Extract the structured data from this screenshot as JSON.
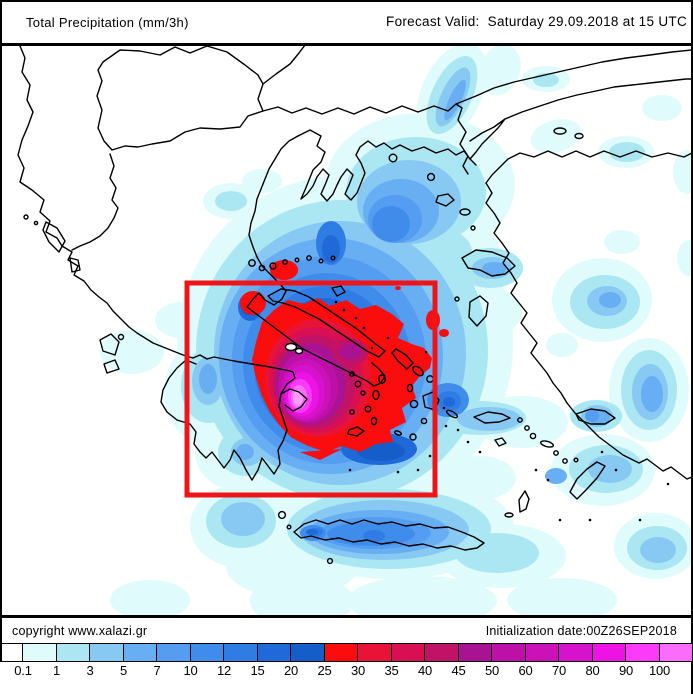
{
  "header": {
    "left_title": "Total Precipitation (mm/3h)",
    "right_title": "Forecast Valid:  Saturday 29.09.2018 at 15 UTC"
  },
  "footer": {
    "copyright": "copyright www.xalazi.gr",
    "initialization": "Initialization date:00Z26SEP2018"
  },
  "legend": {
    "unit": "mm/3h",
    "labels": [
      "0.1",
      "1",
      "3",
      "5",
      "7",
      "10",
      "12",
      "15",
      "20",
      "25",
      "30",
      "35",
      "40",
      "45",
      "50",
      "60",
      "70",
      "80",
      "90",
      "100"
    ],
    "colors": [
      "#ffffff",
      "#e0fbfb",
      "#abe7f2",
      "#87c9f3",
      "#68aef2",
      "#549df0",
      "#3f8ceb",
      "#2f7ce4",
      "#2069d8",
      "#155dc8",
      "#fb0d0d",
      "#e91338",
      "#d80f52",
      "#c01266",
      "#a91292",
      "#bd10a6",
      "#cb12b8",
      "#d712cc",
      "#ec13e4",
      "#fb3bf9",
      "#fa6cfa"
    ],
    "first_cell_width": 23
  },
  "map": {
    "background": "#ffffff",
    "coastline_color": "#000000",
    "highlight_box_color": "#f01418",
    "core_highlight_color": "#fd9efd"
  }
}
